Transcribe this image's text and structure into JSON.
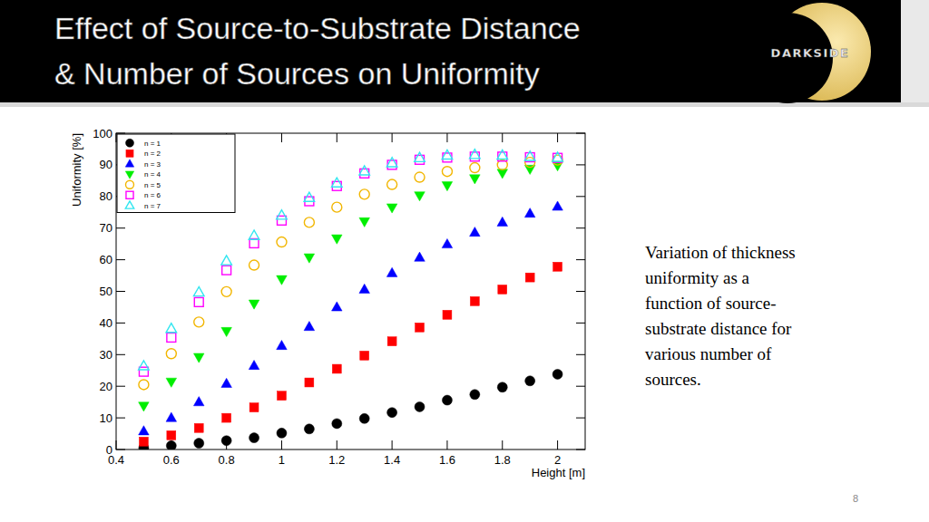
{
  "slide": {
    "title": [
      "Effect of Source-to-Substrate Distance",
      "& Number of Sources on Uniformity"
    ],
    "logo_text": "DARKSIDE",
    "caption": [
      "Variation of thickness",
      "uniformity as a",
      "function of source-",
      "substrate distance for",
      "various number of",
      "sources."
    ],
    "page_number": 8
  },
  "chart_data": {
    "type": "scatter",
    "x_label": "Height [m]",
    "y_label": "Uniformity [%]",
    "x": [
      0.5,
      0.6,
      0.7,
      0.8,
      0.9,
      1.0,
      1.1,
      1.2,
      1.3,
      1.4,
      1.5,
      1.6,
      1.7,
      1.8,
      1.9,
      2.0
    ],
    "xlim": [
      0.4,
      2.1
    ],
    "xticks": [
      0.4,
      0.6,
      0.8,
      1,
      1.2,
      1.4,
      1.6,
      1.8,
      2
    ],
    "ylim": [
      0,
      100
    ],
    "yticks": [
      0,
      10,
      20,
      30,
      40,
      50,
      60,
      70,
      80,
      90,
      100
    ],
    "grid": false,
    "legend": "top-left",
    "series": [
      {
        "name": "n = 1",
        "color": "#000000",
        "marker": "circle",
        "values": [
          0.5,
          1.2,
          2.0,
          2.8,
          3.7,
          5.2,
          6.5,
          8.2,
          9.8,
          11.7,
          13.5,
          15.6,
          17.4,
          19.7,
          21.7,
          23.8
        ]
      },
      {
        "name": "n = 2",
        "color": "#ff0000",
        "marker": "square",
        "values": [
          2.5,
          4.5,
          6.8,
          10.0,
          13.3,
          17.0,
          21.2,
          25.5,
          29.7,
          34.2,
          38.6,
          42.6,
          46.9,
          50.6,
          54.4,
          57.8
        ]
      },
      {
        "name": "n = 3",
        "color": "#0000ff",
        "marker": "triangle",
        "values": [
          5.8,
          10.0,
          15.0,
          20.8,
          26.5,
          32.8,
          38.8,
          45.0,
          50.6,
          55.8,
          60.7,
          64.9,
          68.6,
          71.8,
          74.6,
          76.8
        ]
      },
      {
        "name": "n = 4",
        "color": "#00ee00",
        "marker": "triangle-down",
        "values": [
          13.8,
          21.4,
          29.2,
          37.4,
          46.1,
          53.8,
          60.7,
          66.7,
          72.1,
          76.5,
          80.3,
          83.5,
          85.7,
          87.4,
          88.7,
          89.8
        ]
      },
      {
        "name": "n = 5",
        "color": "#f2b600",
        "marker": "circle-open",
        "values": [
          20.5,
          30.3,
          40.3,
          49.9,
          58.3,
          65.6,
          71.8,
          76.6,
          80.7,
          83.8,
          86.1,
          87.9,
          89.1,
          90.0,
          90.8,
          91.5
        ]
      },
      {
        "name": "n = 6",
        "color": "#ff00ff",
        "marker": "square-open",
        "values": [
          24.6,
          35.4,
          46.6,
          56.7,
          65.2,
          72.4,
          78.5,
          83.3,
          87.3,
          90.0,
          91.6,
          92.3,
          92.6,
          92.6,
          92.4,
          92.2
        ]
      },
      {
        "name": "n = 7",
        "color": "#33e6f0",
        "marker": "triangle-open",
        "values": [
          26.4,
          38.2,
          49.7,
          59.6,
          67.6,
          74.0,
          79.6,
          84.2,
          88.0,
          90.6,
          92.2,
          93.0,
          93.2,
          93.0,
          92.6,
          92.3
        ]
      }
    ]
  }
}
